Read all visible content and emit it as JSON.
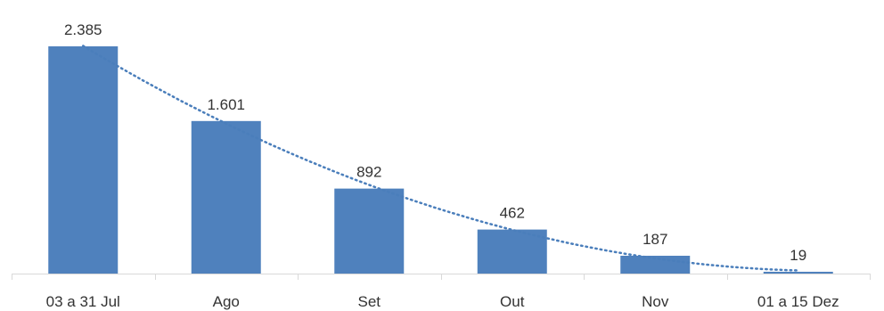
{
  "chart_data": {
    "type": "bar",
    "categories": [
      "03 a 31 Jul",
      "Ago",
      "Set",
      "Out",
      "Nov",
      "01 a 15 Dez"
    ],
    "values": [
      2385,
      1601,
      892,
      462,
      187,
      19
    ],
    "value_labels": [
      "2.385",
      "1.601",
      "892",
      "462",
      "187",
      "19"
    ],
    "title": "",
    "xlabel": "",
    "ylabel": "",
    "ylim": [
      0,
      2385
    ],
    "trendline": "polynomial",
    "grid": false,
    "legend": "none"
  },
  "colors": {
    "bar": "#4f81bd",
    "trendline": "#4a7ebb",
    "axis": "#d9d9d9",
    "text": "#333333"
  }
}
